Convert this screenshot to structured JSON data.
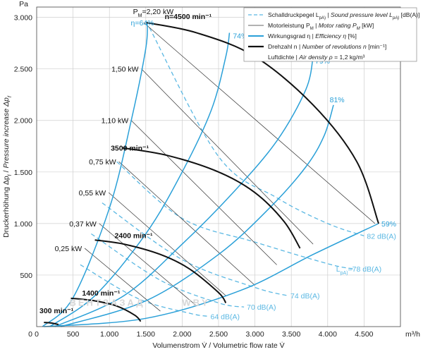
{
  "chart_data": {
    "type": "line",
    "unit_y": "Pa",
    "unit_x": "m³/h",
    "ylabel": "Druckerhöhung Δpf / Pressure increase Δpf",
    "ylabel_parts": [
      "Druckerhöhung Δp",
      "f",
      " / ",
      "Pressure increase Δp",
      "f"
    ],
    "xlabel": "Volumenstrom V̇ / Volumetric flow rate V̇",
    "xlim": [
      0,
      5000
    ],
    "ylim": [
      0,
      3100
    ],
    "x_ticks": [
      0,
      500,
      1000,
      1500,
      2000,
      2500,
      3000,
      3500,
      4000,
      4500
    ],
    "x_tick_labels": [
      "0",
      "500",
      "1.000",
      "1.500",
      "2.000",
      "2.500",
      "3.000",
      "3.500",
      "4.000",
      "4.500"
    ],
    "y_ticks": [
      500,
      1000,
      1500,
      2000,
      2500,
      3000
    ],
    "y_tick_labels": [
      "500",
      "1.000",
      "1.500",
      "2.000",
      "2.500",
      "3.000"
    ],
    "grid": true,
    "legend": {
      "placement": "top-right",
      "items": [
        {
          "style": "dashed-lightblue",
          "text": "Schalldruckpegel L",
          "sub": "pA)",
          "text2": " | ",
          "ital": "Sound pressure level L",
          "sub2": "pA)",
          "text3": " [dB(A)]"
        },
        {
          "style": "thin-black",
          "text": "Motorleistung P",
          "sub": "M",
          "text2": " | ",
          "ital": "Motor rating P",
          "sub2": "M",
          "text3": " [kW]"
        },
        {
          "style": "blue",
          "text": "Wirkungsgrad η",
          "sub": "",
          "text2": " | ",
          "ital": "Efficiency η",
          "sub2": "",
          "text3": " [%]"
        },
        {
          "style": "thick-black",
          "text": "Drehzahl n",
          "sub": "",
          "text2": " | ",
          "ital": "Number of revolutions n",
          "sub2": "",
          "text3": " [min⁻¹]"
        },
        {
          "style": "none",
          "text": "Luftdichte",
          "sub": "",
          "text2": " | ",
          "ital": "Air density ρ",
          "sub2": "",
          "text3": " = 1,2 kg/m³"
        }
      ]
    },
    "colors": {
      "blue": "#2aa0d8",
      "light_blue": "#5bb8e3",
      "black": "#111111",
      "grid": "#cfcfcf"
    },
    "speed_curves": [
      {
        "label": "n=4500 min⁻¹",
        "points": [
          [
            1500,
            2950
          ],
          [
            2200,
            2850
          ],
          [
            3000,
            2620
          ],
          [
            3800,
            2150
          ],
          [
            4400,
            1600
          ],
          [
            4700,
            1000
          ]
        ]
      },
      {
        "label": "3500 min⁻¹",
        "points": [
          [
            1170,
            1735
          ],
          [
            1800,
            1660
          ],
          [
            2500,
            1500
          ],
          [
            3000,
            1300
          ],
          [
            3400,
            1020
          ],
          [
            3620,
            760
          ]
        ]
      },
      {
        "label": "2400 min⁻¹",
        "points": [
          [
            800,
            840
          ],
          [
            1200,
            800
          ],
          [
            1700,
            700
          ],
          [
            2100,
            560
          ],
          [
            2500,
            330
          ],
          [
            2600,
            230
          ]
        ]
      },
      {
        "label": "1400 min⁻¹",
        "points": [
          [
            470,
            275
          ],
          [
            800,
            250
          ],
          [
            1100,
            200
          ],
          [
            1350,
            110
          ],
          [
            1430,
            50
          ]
        ]
      },
      {
        "label": "300 min⁻¹",
        "points": [
          [
            100,
            40
          ],
          [
            200,
            35
          ],
          [
            300,
            20
          ]
        ]
      }
    ],
    "efficiency_curves": [
      {
        "label": "η=64%",
        "points": [
          [
            80,
            0
          ],
          [
            500,
            280
          ],
          [
            1000,
            1150
          ],
          [
            1300,
            2000
          ],
          [
            1500,
            2700
          ],
          [
            1520,
            2950
          ]
        ]
      },
      {
        "label": "74%",
        "points": [
          [
            180,
            0
          ],
          [
            800,
            300
          ],
          [
            1500,
            900
          ],
          [
            2000,
            1500
          ],
          [
            2400,
            2100
          ],
          [
            2600,
            2620
          ],
          [
            2650,
            2850
          ]
        ]
      },
      {
        "label": "79%",
        "points": [
          [
            250,
            0
          ],
          [
            1200,
            300
          ],
          [
            2000,
            800
          ],
          [
            2700,
            1300
          ],
          [
            3300,
            1800
          ],
          [
            3700,
            2300
          ],
          [
            3800,
            2620
          ]
        ]
      },
      {
        "label": "81%",
        "points": [
          [
            330,
            0
          ],
          [
            1500,
            250
          ],
          [
            2500,
            700
          ],
          [
            3200,
            1150
          ],
          [
            3700,
            1550
          ],
          [
            3950,
            1850
          ],
          [
            4080,
            2150
          ]
        ]
      },
      {
        "label": "59%",
        "points": [
          [
            100,
            0
          ],
          [
            1500,
            80
          ],
          [
            2800,
            350
          ],
          [
            3800,
            700
          ],
          [
            4700,
            1000
          ]
        ]
      }
    ],
    "motor_rating_lines": [
      {
        "label": "P",
        "sub": "M",
        "suffix": "=2,20 kW",
        "points": [
          [
            1470,
            2950
          ],
          [
            4650,
            1000
          ]
        ]
      },
      {
        "label": "1,50 kW",
        "points": [
          [
            1440,
            2500
          ],
          [
            3800,
            800
          ]
        ]
      },
      {
        "label": "1,10 kW",
        "points": [
          [
            1300,
            2000
          ],
          [
            3300,
            600
          ]
        ]
      },
      {
        "label": "0,75 kW",
        "points": [
          [
            1130,
            1600
          ],
          [
            3000,
            400
          ]
        ]
      },
      {
        "label": "0,55 kW",
        "points": [
          [
            990,
            1300
          ],
          [
            2600,
            300
          ]
        ]
      },
      {
        "label": "0,37 kW",
        "points": [
          [
            860,
            1000
          ],
          [
            2200,
            200
          ]
        ]
      },
      {
        "label": "0,25 kW",
        "points": [
          [
            660,
            760
          ],
          [
            1700,
            150
          ]
        ]
      }
    ],
    "sound_curves": [
      {
        "label": "82 dB(A)",
        "points": [
          [
            1550,
            2900
          ],
          [
            2500,
            1650
          ],
          [
            3300,
            1250
          ],
          [
            4000,
            1000
          ],
          [
            4500,
            880
          ]
        ]
      },
      {
        "label": "L",
        "sub": "pA)",
        "suffix": "=78 dB(A)",
        "points": [
          [
            1100,
            1600
          ],
          [
            2000,
            1050
          ],
          [
            3000,
            820
          ],
          [
            4000,
            610
          ],
          [
            4350,
            560
          ]
        ]
      },
      {
        "label": "74 dB(A)",
        "points": [
          [
            900,
            1200
          ],
          [
            2000,
            650
          ],
          [
            3000,
            380
          ],
          [
            3450,
            300
          ]
        ]
      },
      {
        "label": "70 dB(A)",
        "points": [
          [
            750,
            900
          ],
          [
            1700,
            450
          ],
          [
            2500,
            230
          ],
          [
            2850,
            190
          ]
        ]
      },
      {
        "label": "64 dB(A)",
        "points": [
          [
            600,
            600
          ],
          [
            1400,
            270
          ],
          [
            2100,
            130
          ],
          [
            2350,
            100
          ]
        ]
      }
    ],
    "watermark": "ВЕНТЗАЗАД",
    "watermark2": "WBY"
  }
}
